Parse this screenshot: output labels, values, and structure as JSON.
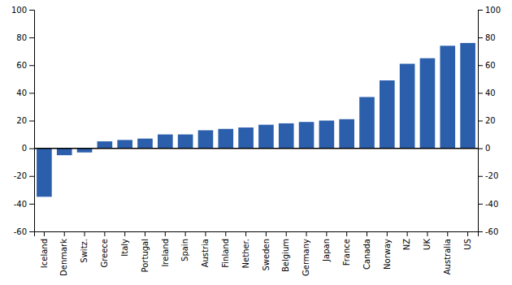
{
  "chart_data": {
    "type": "bar",
    "categories": [
      "Iceland",
      "Denmark",
      "Switz.",
      "Greece",
      "Italy",
      "Portugal",
      "Ireland",
      "Spain",
      "Austria",
      "Finland",
      "Nether.",
      "Sweden",
      "Belgium",
      "Germany",
      "Japan",
      "France",
      "Canada",
      "Norway",
      "NZ",
      "UK",
      "Australia",
      "US"
    ],
    "values": [
      -35,
      -5,
      -3,
      5,
      6,
      7,
      10,
      10,
      13,
      14,
      15,
      17,
      18,
      19,
      20,
      21,
      37,
      49,
      61,
      65,
      74,
      76
    ],
    "color": "#2b5fac",
    "ylim": [
      -60,
      100
    ],
    "yticks": [
      -60,
      -40,
      -20,
      0,
      20,
      40,
      60,
      80,
      100
    ],
    "y2lim": [
      -60,
      100
    ],
    "y2ticks": [
      -60,
      -40,
      -20,
      0,
      20,
      40,
      60,
      80,
      100
    ],
    "grid": false
  }
}
